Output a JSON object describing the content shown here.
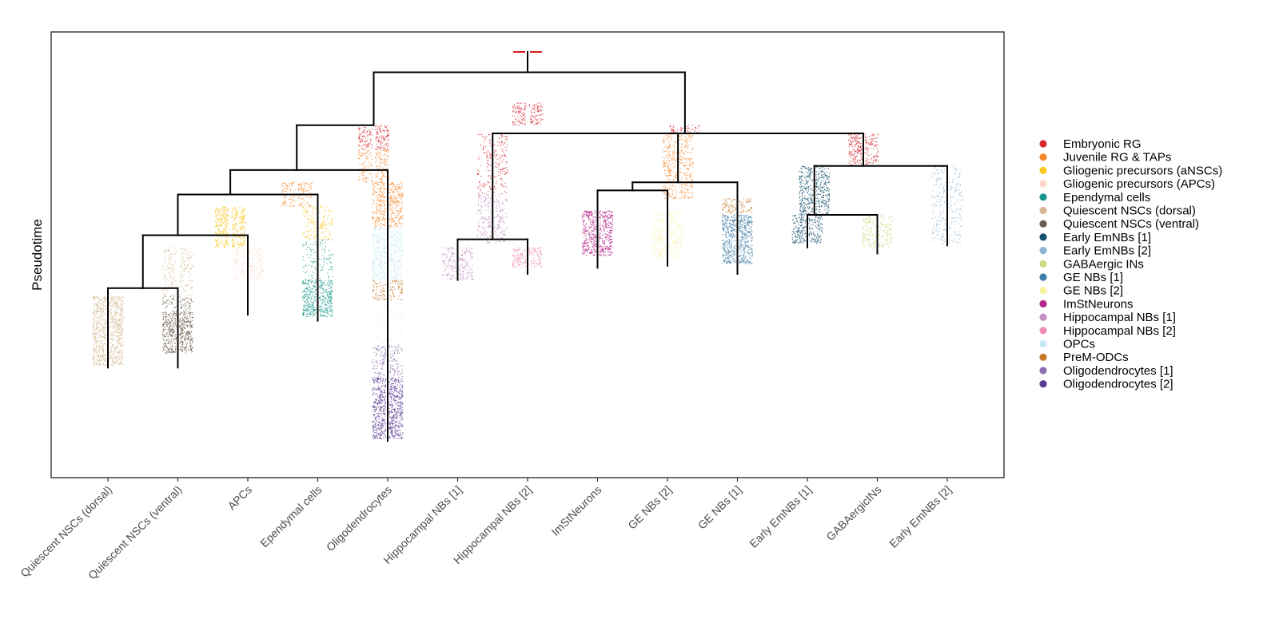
{
  "chart_data": {
    "type": "scatter",
    "subtype": "pseudotime-tree",
    "ylabel": "Pseudotime",
    "xlabel": "",
    "ylim": [
      0,
      1
    ],
    "grid": false,
    "legend_position": "right",
    "root_marker_color": "#d7191c",
    "leaves": [
      "Quiescent NSCs (dorsal)",
      "Quiescent NSCs (ventral)",
      "APCs",
      "Ependymal cells",
      "Oligodendrocytes",
      "Hippocampal NBs [1]",
      "Hippocampal NBs [2]",
      "ImStNeurons",
      "GE NBs [2]",
      "GE NBs [1]",
      "Early EmNBs [1]",
      "GABAergicINs",
      "Early EmNBs [2]"
    ],
    "legend": [
      {
        "name": "Embryonic RG",
        "color": "#d62a2f"
      },
      {
        "name": "Juvenile RG & TAPs",
        "color": "#f6882b"
      },
      {
        "name": "Gliogenic precursors (aNSCs)",
        "color": "#f9c721"
      },
      {
        "name": "Gliogenic precursors (APCs)",
        "color": "#fcd6c8"
      },
      {
        "name": "Ependymal cells",
        "color": "#17988c"
      },
      {
        "name": "Quiescent NSCs (dorsal)",
        "color": "#d4b88f"
      },
      {
        "name": "Quiescent NSCs (ventral)",
        "color": "#6b5c4c"
      },
      {
        "name": "Early EmNBs [1]",
        "color": "#15526f"
      },
      {
        "name": "Early EmNBs [2]",
        "color": "#8fb3d6"
      },
      {
        "name": "GABAergic INs",
        "color": "#c8dc82"
      },
      {
        "name": "GE NBs [1]",
        "color": "#3f7ea8"
      },
      {
        "name": "GE NBs [2]",
        "color": "#f6f39e"
      },
      {
        "name": "ImStNeurons",
        "color": "#b6258a"
      },
      {
        "name": "Hippocampal NBs [1]",
        "color": "#c691c4"
      },
      {
        "name": "Hippocampal NBs [2]",
        "color": "#ef8fb8"
      },
      {
        "name": "OPCs",
        "color": "#c6e7f6"
      },
      {
        "name": "PreM-ODCs",
        "color": "#c4792a"
      },
      {
        "name": "Oligodendrocytes [1]",
        "color": "#8a6fb2"
      },
      {
        "name": "Oligodendrocytes [2]",
        "color": "#5a3b94"
      }
    ],
    "tree_nodes": [
      {
        "id": "n1",
        "x": 6,
        "y": 0.05,
        "parent": null
      },
      {
        "id": "n2",
        "x": 3.8,
        "y": 0.18,
        "parent": "n1"
      },
      {
        "id": "n3",
        "x": 2.7,
        "y": 0.29,
        "parent": "n2"
      },
      {
        "id": "n4",
        "x": 1.75,
        "y": 0.35,
        "parent": "n3"
      },
      {
        "id": "n5",
        "x": 1,
        "y": 0.45,
        "parent": "n4"
      },
      {
        "id": "n6",
        "x": 0.5,
        "y": 0.58,
        "parent": "n5"
      },
      {
        "id": "n7",
        "x": 8.25,
        "y": 0.2,
        "parent": "n1"
      },
      {
        "id": "n8",
        "x": 5.5,
        "y": 0.46,
        "parent": "n7"
      },
      {
        "id": "n9",
        "x": 8.15,
        "y": 0.32,
        "parent": "n7"
      },
      {
        "id": "n10",
        "x": 7.5,
        "y": 0.34,
        "parent": "n9"
      },
      {
        "id": "n11",
        "x": 10.8,
        "y": 0.28,
        "parent": "n7"
      },
      {
        "id": "n12",
        "x": 10.1,
        "y": 0.4,
        "parent": "n11"
      }
    ],
    "tree_leaves": [
      {
        "leaf": 0,
        "y": 0.775,
        "parent": "n6"
      },
      {
        "leaf": 1,
        "y": 0.775,
        "parent": "n6"
      },
      {
        "leaf": 2,
        "y": 0.645,
        "parent": "n5"
      },
      {
        "leaf": 3,
        "y": 0.66,
        "parent": "n4"
      },
      {
        "leaf": 4,
        "y": 0.955,
        "parent": "n3"
      },
      {
        "leaf": 5,
        "y": 0.56,
        "parent": "n8"
      },
      {
        "leaf": 6,
        "y": 0.545,
        "parent": "n8"
      },
      {
        "leaf": 7,
        "y": 0.53,
        "parent": "n10"
      },
      {
        "leaf": 8,
        "y": 0.525,
        "parent": "n10"
      },
      {
        "leaf": 9,
        "y": 0.545,
        "parent": "n9"
      },
      {
        "leaf": 10,
        "y": 0.48,
        "parent": "n12"
      },
      {
        "leaf": 11,
        "y": 0.495,
        "parent": "n12"
      },
      {
        "leaf": 12,
        "y": 0.475,
        "parent": "n11"
      }
    ],
    "cell_segments": [
      {
        "x": 6,
        "y": [
          0.125,
          0.18
        ],
        "legend": 0,
        "density": 1.2
      },
      {
        "x": 3.8,
        "y": [
          0.18,
          0.24
        ],
        "legend": 0,
        "density": 1.2
      },
      {
        "x": 3.8,
        "y": [
          0.24,
          0.32
        ],
        "legend": 1,
        "density": 0.9
      },
      {
        "x": 2.7,
        "y": [
          0.32,
          0.38
        ],
        "legend": 1,
        "density": 1
      },
      {
        "x": 1.75,
        "y": [
          0.38,
          0.48
        ],
        "legend": 2,
        "density": 1.6
      },
      {
        "x": 1,
        "y": [
          0.48,
          0.6
        ],
        "legend": 5,
        "density": 0.6
      },
      {
        "x": 0,
        "y": [
          0.6,
          0.77
        ],
        "legend": 5,
        "density": 1.8
      },
      {
        "x": 1,
        "y": [
          0.6,
          0.64
        ],
        "legend": 6,
        "density": 0.8
      },
      {
        "x": 1,
        "y": [
          0.64,
          0.74
        ],
        "legend": 6,
        "density": 1.8
      },
      {
        "x": 2,
        "y": [
          0.48,
          0.56
        ],
        "legend": 3,
        "density": 0.8
      },
      {
        "x": 3,
        "y": [
          0.38,
          0.46
        ],
        "legend": 2,
        "density": 0.7
      },
      {
        "x": 3,
        "y": [
          0.46,
          0.56
        ],
        "legend": 4,
        "density": 0.4
      },
      {
        "x": 3,
        "y": [
          0.56,
          0.65
        ],
        "legend": 4,
        "density": 1.8
      },
      {
        "x": 4,
        "y": [
          0.32,
          0.43
        ],
        "legend": 1,
        "density": 1.4
      },
      {
        "x": 4,
        "y": [
          0.43,
          0.56
        ],
        "legend": 15,
        "density": 1.4
      },
      {
        "x": 4,
        "y": [
          0.56,
          0.61
        ],
        "legend": 16,
        "density": 1
      },
      {
        "x": 4,
        "y": [
          0.61,
          0.72
        ],
        "legend": 15,
        "density": 0.15
      },
      {
        "x": 4,
        "y": [
          0.72,
          0.8
        ],
        "legend": 17,
        "density": 0.8
      },
      {
        "x": 4,
        "y": [
          0.8,
          0.95
        ],
        "legend": 18,
        "density": 1.8
      },
      {
        "x": 5.5,
        "y": [
          0.2,
          0.35
        ],
        "legend": 0,
        "density": 0.5
      },
      {
        "x": 5.5,
        "y": [
          0.35,
          0.47
        ],
        "legend": 13,
        "density": 0.8
      },
      {
        "x": 5,
        "y": [
          0.48,
          0.56
        ],
        "legend": 13,
        "density": 1.1
      },
      {
        "x": 6,
        "y": [
          0.48,
          0.53
        ],
        "legend": 14,
        "density": 1.4
      },
      {
        "x": 8.25,
        "y": [
          0.18,
          0.2
        ],
        "legend": 0,
        "density": 1
      },
      {
        "x": 8.15,
        "y": [
          0.2,
          0.36
        ],
        "legend": 1,
        "density": 0.9
      },
      {
        "x": 7,
        "y": [
          0.39,
          0.5
        ],
        "legend": 12,
        "density": 1.8
      },
      {
        "x": 8,
        "y": [
          0.39,
          0.51
        ],
        "legend": 11,
        "density": 0.8
      },
      {
        "x": 9,
        "y": [
          0.36,
          0.4
        ],
        "legend": 16,
        "density": 1
      },
      {
        "x": 9,
        "y": [
          0.4,
          0.52
        ],
        "legend": 10,
        "density": 1.8
      },
      {
        "x": 10.8,
        "y": [
          0.2,
          0.28
        ],
        "legend": 0,
        "density": 1.2
      },
      {
        "x": 10.1,
        "y": [
          0.28,
          0.4
        ],
        "legend": 7,
        "density": 1.4
      },
      {
        "x": 10,
        "y": [
          0.4,
          0.47
        ],
        "legend": 7,
        "density": 1.4
      },
      {
        "x": 11,
        "y": [
          0.4,
          0.48
        ],
        "legend": 9,
        "density": 1
      },
      {
        "x": 12,
        "y": [
          0.28,
          0.47
        ],
        "legend": 8,
        "density": 0.5
      }
    ]
  }
}
